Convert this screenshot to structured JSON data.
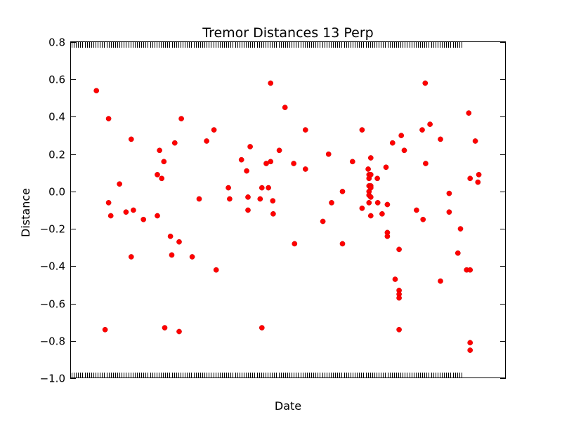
{
  "chart_data": {
    "type": "scatter",
    "title": "Tremor Distances 13 Perp",
    "xlabel": "Date",
    "ylabel": "Distance",
    "ylim": [
      -1.0,
      0.8
    ],
    "yticks": [
      "0.8",
      "0.6",
      "0.4",
      "0.2",
      "0.0",
      "−0.2",
      "−0.4",
      "−0.6",
      "−0.8",
      "−1.0"
    ],
    "ytick_values": [
      0.8,
      0.6,
      0.4,
      0.2,
      0.0,
      -0.2,
      -0.4,
      -0.6,
      -0.8,
      -1.0
    ],
    "grid": false,
    "color": "#ff0000",
    "x_index_range": [
      0,
      100
    ],
    "points": [
      {
        "x": 6.0,
        "y": 0.54
      },
      {
        "x": 8.0,
        "y": -0.74
      },
      {
        "x": 8.8,
        "y": 0.39
      },
      {
        "x": 8.8,
        "y": -0.06
      },
      {
        "x": 9.3,
        "y": -0.13
      },
      {
        "x": 11.3,
        "y": 0.04
      },
      {
        "x": 12.8,
        "y": -0.11
      },
      {
        "x": 14.0,
        "y": 0.28
      },
      {
        "x": 14.0,
        "y": -0.35
      },
      {
        "x": 14.5,
        "y": -0.1
      },
      {
        "x": 16.8,
        "y": -0.15
      },
      {
        "x": 20.0,
        "y": 0.09
      },
      {
        "x": 20.0,
        "y": -0.13
      },
      {
        "x": 20.5,
        "y": 0.22
      },
      {
        "x": 21.0,
        "y": 0.07
      },
      {
        "x": 21.5,
        "y": 0.16
      },
      {
        "x": 21.7,
        "y": -0.73
      },
      {
        "x": 23.0,
        "y": -0.24
      },
      {
        "x": 23.3,
        "y": -0.34
      },
      {
        "x": 24.0,
        "y": 0.26
      },
      {
        "x": 25.0,
        "y": -0.27
      },
      {
        "x": 25.0,
        "y": -0.75
      },
      {
        "x": 25.5,
        "y": 0.39
      },
      {
        "x": 28.0,
        "y": -0.35
      },
      {
        "x": 29.6,
        "y": -0.04
      },
      {
        "x": 31.3,
        "y": 0.27
      },
      {
        "x": 33.0,
        "y": 0.33
      },
      {
        "x": 33.5,
        "y": -0.42
      },
      {
        "x": 36.3,
        "y": 0.02
      },
      {
        "x": 36.6,
        "y": -0.04
      },
      {
        "x": 39.3,
        "y": 0.17
      },
      {
        "x": 40.5,
        "y": 0.11
      },
      {
        "x": 40.8,
        "y": -0.1
      },
      {
        "x": 40.8,
        "y": -0.03
      },
      {
        "x": 41.3,
        "y": 0.24
      },
      {
        "x": 43.6,
        "y": -0.04
      },
      {
        "x": 44.0,
        "y": 0.02
      },
      {
        "x": 44.0,
        "y": -0.73
      },
      {
        "x": 45.0,
        "y": 0.15
      },
      {
        "x": 45.5,
        "y": 0.02
      },
      {
        "x": 46.0,
        "y": 0.58
      },
      {
        "x": 46.0,
        "y": 0.16
      },
      {
        "x": 46.5,
        "y": -0.05
      },
      {
        "x": 46.6,
        "y": -0.12
      },
      {
        "x": 48.0,
        "y": 0.22
      },
      {
        "x": 49.3,
        "y": 0.45
      },
      {
        "x": 51.3,
        "y": 0.15
      },
      {
        "x": 51.5,
        "y": -0.28
      },
      {
        "x": 54.0,
        "y": 0.33
      },
      {
        "x": 54.0,
        "y": 0.12
      },
      {
        "x": 58.0,
        "y": -0.16
      },
      {
        "x": 59.3,
        "y": 0.2
      },
      {
        "x": 60.0,
        "y": -0.06
      },
      {
        "x": 62.5,
        "y": 0.0
      },
      {
        "x": 62.5,
        "y": -0.28
      },
      {
        "x": 64.8,
        "y": 0.16
      },
      {
        "x": 67.0,
        "y": 0.33
      },
      {
        "x": 67.0,
        "y": -0.09
      },
      {
        "x": 68.4,
        "y": 0.12
      },
      {
        "x": 68.6,
        "y": 0.09
      },
      {
        "x": 68.6,
        "y": 0.07
      },
      {
        "x": 68.6,
        "y": 0.03
      },
      {
        "x": 68.6,
        "y": 0.0
      },
      {
        "x": 68.6,
        "y": -0.02
      },
      {
        "x": 68.6,
        "y": -0.06
      },
      {
        "x": 69.0,
        "y": 0.18
      },
      {
        "x": 69.0,
        "y": 0.09
      },
      {
        "x": 69.0,
        "y": 0.03
      },
      {
        "x": 69.0,
        "y": 0.02
      },
      {
        "x": 69.0,
        "y": -0.03
      },
      {
        "x": 69.0,
        "y": -0.13
      },
      {
        "x": 70.5,
        "y": 0.07
      },
      {
        "x": 70.6,
        "y": -0.06
      },
      {
        "x": 71.6,
        "y": -0.12
      },
      {
        "x": 72.5,
        "y": 0.13
      },
      {
        "x": 72.8,
        "y": -0.07
      },
      {
        "x": 72.8,
        "y": -0.22
      },
      {
        "x": 72.8,
        "y": -0.24
      },
      {
        "x": 74.0,
        "y": 0.26
      },
      {
        "x": 74.6,
        "y": -0.47
      },
      {
        "x": 75.5,
        "y": -0.31
      },
      {
        "x": 75.5,
        "y": -0.53
      },
      {
        "x": 75.5,
        "y": -0.55
      },
      {
        "x": 75.5,
        "y": -0.57
      },
      {
        "x": 75.5,
        "y": -0.74
      },
      {
        "x": 76.0,
        "y": 0.3
      },
      {
        "x": 76.7,
        "y": 0.22
      },
      {
        "x": 79.5,
        "y": -0.1
      },
      {
        "x": 80.8,
        "y": 0.33
      },
      {
        "x": 81.0,
        "y": -0.15
      },
      {
        "x": 81.5,
        "y": 0.58
      },
      {
        "x": 81.6,
        "y": 0.15
      },
      {
        "x": 82.6,
        "y": 0.36
      },
      {
        "x": 85.0,
        "y": 0.28
      },
      {
        "x": 85.0,
        "y": -0.48
      },
      {
        "x": 87.0,
        "y": -0.01
      },
      {
        "x": 87.0,
        "y": -0.11
      },
      {
        "x": 89.0,
        "y": -0.33
      },
      {
        "x": 89.6,
        "y": -0.2
      },
      {
        "x": 91.0,
        "y": -0.42
      },
      {
        "x": 91.5,
        "y": 0.42
      },
      {
        "x": 91.8,
        "y": 0.07
      },
      {
        "x": 91.8,
        "y": -0.42
      },
      {
        "x": 91.8,
        "y": -0.81
      },
      {
        "x": 91.8,
        "y": -0.85
      },
      {
        "x": 93.0,
        "y": 0.27
      },
      {
        "x": 93.6,
        "y": 0.05
      },
      {
        "x": 93.8,
        "y": 0.09
      }
    ]
  }
}
